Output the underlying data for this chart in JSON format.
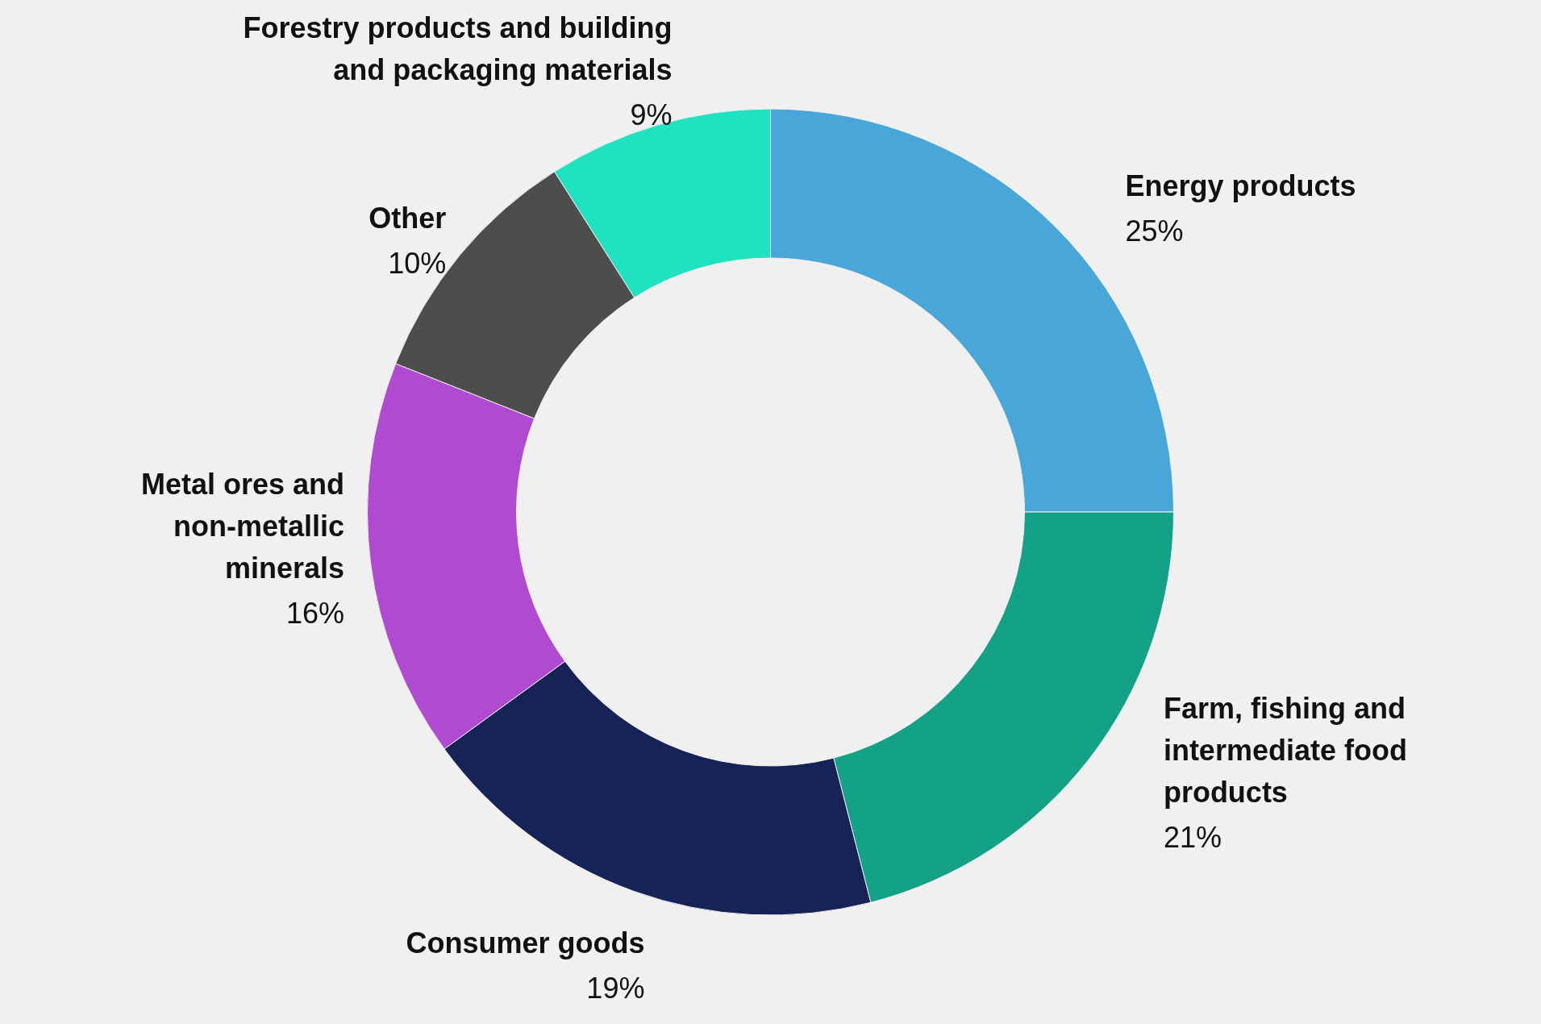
{
  "chart_data": {
    "type": "donut",
    "categories": [
      "Energy products",
      "Farm, fishing and intermediate food products",
      "Consumer goods",
      "Metal ores and non-metallic minerals",
      "Other",
      "Forestry products and building and packaging materials"
    ],
    "values": [
      25,
      21,
      19,
      16,
      10,
      9
    ],
    "colors": [
      "#48a7d8",
      "#13a288",
      "#162356",
      "#b04ad0",
      "#4d4d4d",
      "#1fe2c0"
    ],
    "value_labels": [
      "25%",
      "21%",
      "19%",
      "16%",
      "10%",
      "9%"
    ]
  }
}
